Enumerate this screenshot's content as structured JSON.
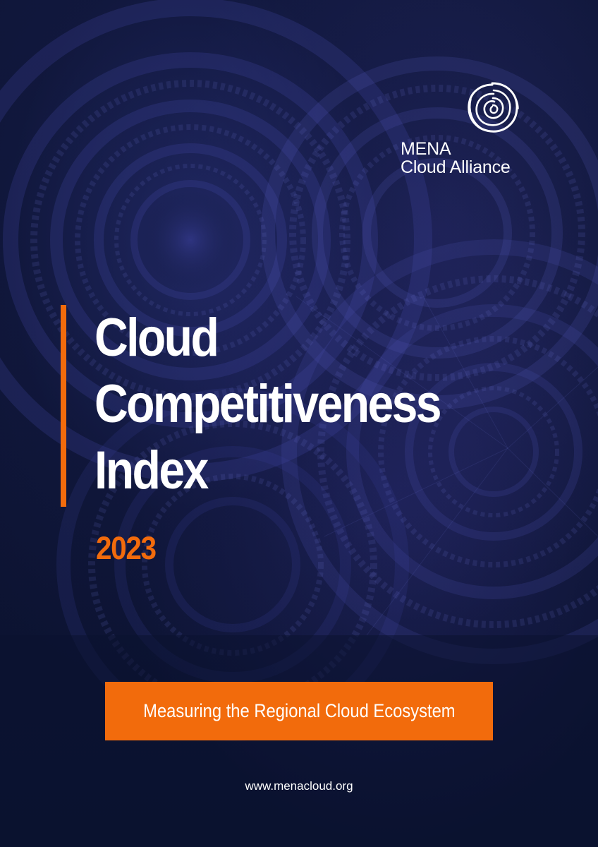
{
  "logo": {
    "line1": "MENA",
    "line2": "Cloud Alliance"
  },
  "title": {
    "line1": "Cloud",
    "line2": "Competitiveness",
    "line3": "Index"
  },
  "year": "2023",
  "tagline": "Measuring the Regional Cloud Ecosystem",
  "website": "www.menacloud.org",
  "colors": {
    "background": "#0d1433",
    "accent": "#f26b0c",
    "text": "#ffffff"
  },
  "icons": {
    "logo": "spiral-swirl-icon"
  }
}
